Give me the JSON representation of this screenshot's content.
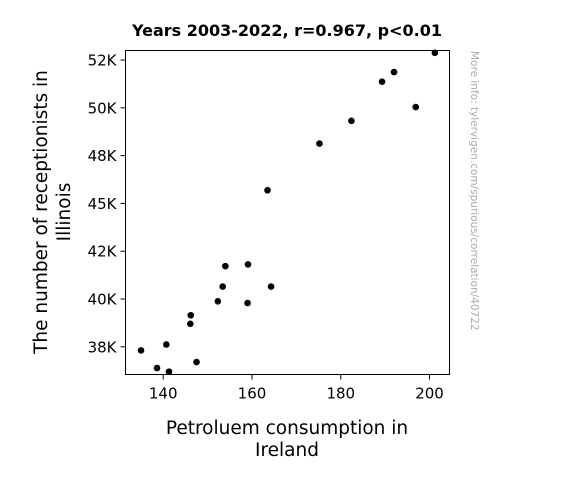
{
  "chart_data": {
    "type": "scatter",
    "title": "Years 2003-2022, r=0.967, p<0.01",
    "xlabel": [
      "Petroluem consumption in",
      "Ireland"
    ],
    "ylabel": [
      "The number of receptionists in",
      "Illinois"
    ],
    "xlim": [
      131.5,
      204.5
    ],
    "ylim": [
      36050,
      53000
    ],
    "x_ticks": [
      140,
      160,
      180,
      200
    ],
    "x_tick_labels": [
      "140",
      "160",
      "180",
      "200"
    ],
    "y_ticks": [
      37500,
      40000,
      42500,
      45000,
      47500,
      50000,
      52500
    ],
    "y_tick_labels": [
      "38K",
      "40K",
      "42K",
      "45K",
      "48K",
      "50K",
      "52K"
    ],
    "grid": false,
    "marker_color": "#000000",
    "points": [
      {
        "x": 135.0,
        "y": 37310
      },
      {
        "x": 138.6,
        "y": 36390
      },
      {
        "x": 140.7,
        "y": 37620
      },
      {
        "x": 141.3,
        "y": 36200
      },
      {
        "x": 146.1,
        "y": 38700
      },
      {
        "x": 146.2,
        "y": 39150
      },
      {
        "x": 147.5,
        "y": 36700
      },
      {
        "x": 152.3,
        "y": 39880
      },
      {
        "x": 153.4,
        "y": 40650
      },
      {
        "x": 154.0,
        "y": 41720
      },
      {
        "x": 159.0,
        "y": 39790
      },
      {
        "x": 159.1,
        "y": 41810
      },
      {
        "x": 163.5,
        "y": 45690
      },
      {
        "x": 164.3,
        "y": 40650
      },
      {
        "x": 175.2,
        "y": 48130
      },
      {
        "x": 182.4,
        "y": 49320
      },
      {
        "x": 189.3,
        "y": 51370
      },
      {
        "x": 192.0,
        "y": 51870
      },
      {
        "x": 196.9,
        "y": 50040
      },
      {
        "x": 201.2,
        "y": 52880
      }
    ]
  },
  "watermark": "More info: tylervigen.com/spurious/correlation/40722"
}
